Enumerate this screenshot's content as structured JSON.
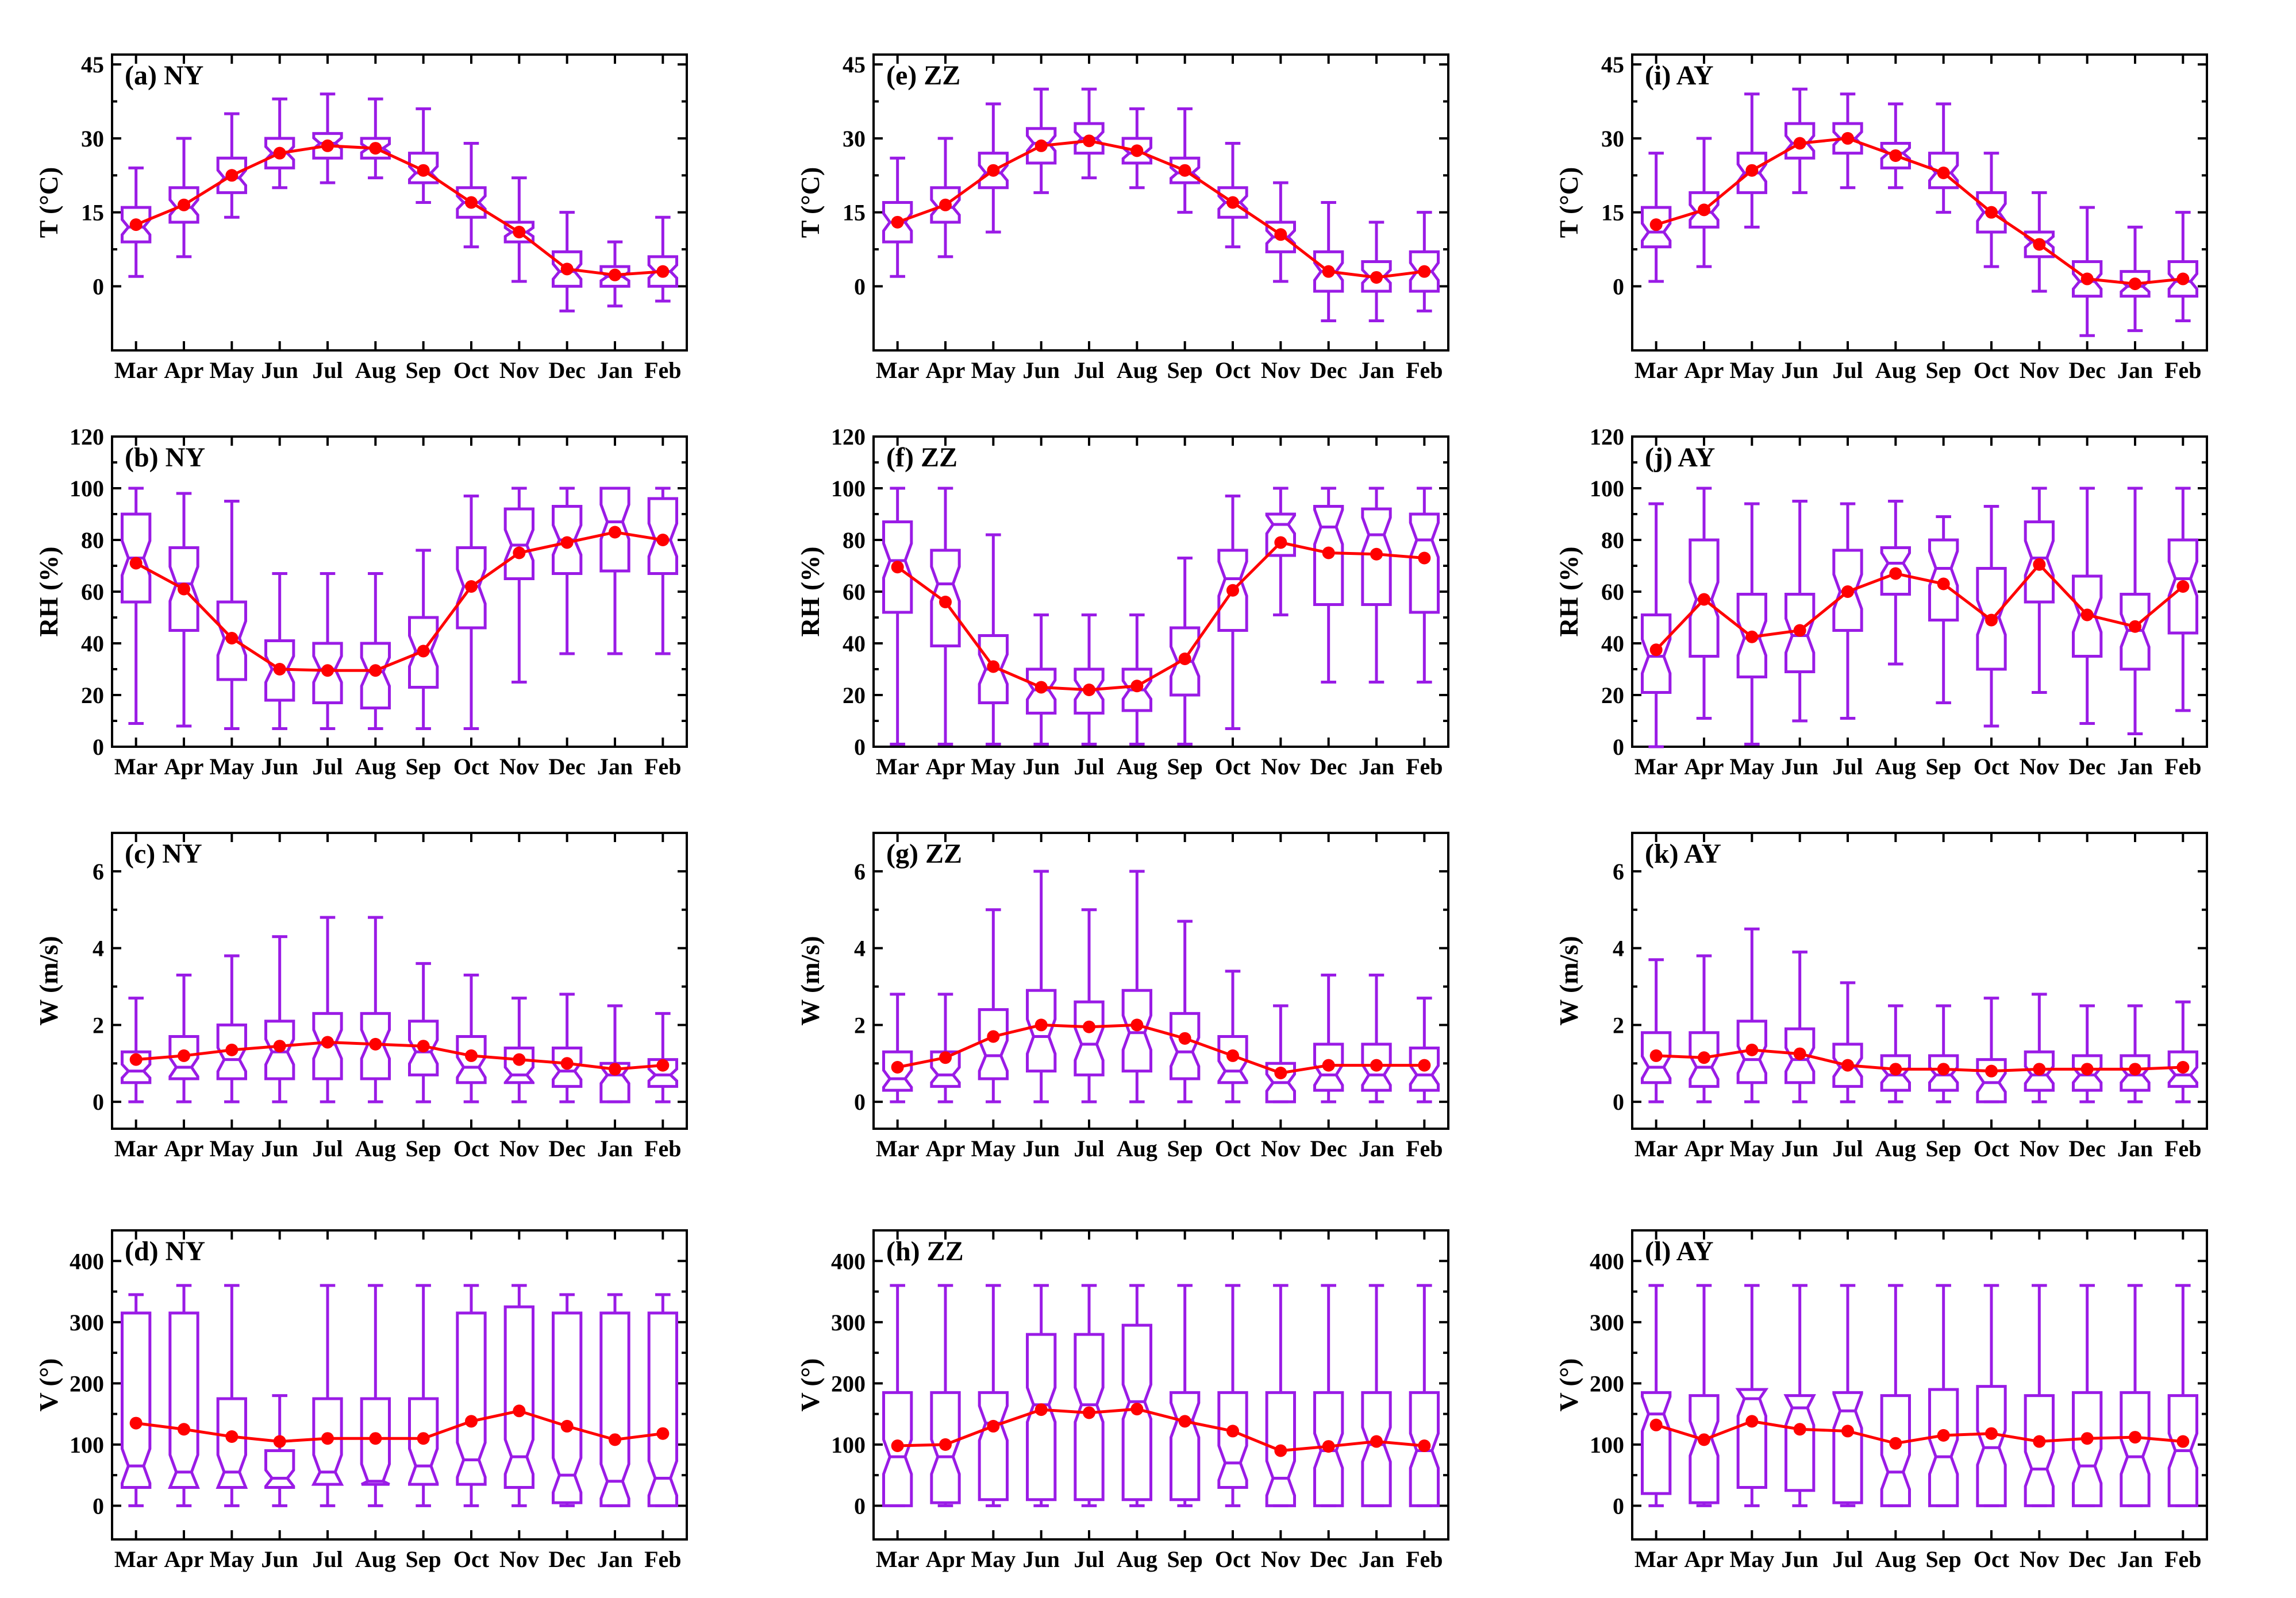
{
  "figure": {
    "box_color": "#9a1be6",
    "mean_color": "#ff0000"
  },
  "chart_data": [
    {
      "type": "box",
      "panel_label": "(a) NY",
      "ylabel": "T (°C)",
      "ylim": [
        -13,
        47
      ],
      "yticks": [
        0,
        15,
        30,
        45
      ],
      "categories": [
        "Mar",
        "Apr",
        "May",
        "Jun",
        "Jul",
        "Aug",
        "Sep",
        "Oct",
        "Nov",
        "Dec",
        "Jan",
        "Feb"
      ],
      "min": [
        2,
        6,
        14,
        20,
        21,
        22,
        17,
        8,
        1,
        -5,
        -4,
        -3
      ],
      "q1": [
        9,
        13,
        19,
        24,
        26,
        26,
        21,
        14,
        9,
        0,
        0,
        0
      ],
      "median": [
        12,
        16,
        22,
        27,
        29,
        28,
        23,
        17,
        11,
        3,
        2,
        3
      ],
      "q3": [
        16,
        20,
        26,
        30,
        31,
        30,
        27,
        20,
        13,
        7,
        4,
        6
      ],
      "max": [
        24,
        30,
        35,
        38,
        39,
        38,
        36,
        29,
        22,
        15,
        9,
        14
      ],
      "mean": [
        12.5,
        16.5,
        22.5,
        27,
        28.5,
        28,
        23.5,
        17,
        11,
        3.5,
        2.3,
        3
      ]
    },
    {
      "type": "box",
      "panel_label": "(b) NY",
      "ylabel": "RH (%)",
      "ylim": [
        0,
        120
      ],
      "yticks": [
        0,
        20,
        40,
        60,
        80,
        100,
        120
      ],
      "categories": [
        "Mar",
        "Apr",
        "May",
        "Jun",
        "Jul",
        "Aug",
        "Sep",
        "Oct",
        "Nov",
        "Dec",
        "Jan",
        "Feb"
      ],
      "min": [
        9,
        8,
        7,
        7,
        7,
        7,
        7,
        7,
        25,
        36,
        36,
        36
      ],
      "q1": [
        56,
        45,
        26,
        18,
        17,
        15,
        23,
        46,
        65,
        67,
        68,
        67
      ],
      "median": [
        73,
        63,
        42,
        30,
        30,
        29,
        37,
        62,
        78,
        80,
        87,
        80
      ],
      "q3": [
        90,
        77,
        56,
        41,
        40,
        40,
        50,
        77,
        92,
        93,
        100,
        96
      ],
      "max": [
        100,
        98,
        95,
        67,
        67,
        67,
        76,
        97,
        100,
        100,
        100,
        100
      ],
      "mean": [
        71,
        61,
        42,
        30,
        29.5,
        29.5,
        37,
        62,
        75,
        79,
        83,
        80
      ]
    },
    {
      "type": "box",
      "panel_label": "(c) NY",
      "ylabel": "W (m/s)",
      "ylim": [
        -0.7,
        7
      ],
      "yticks": [
        0,
        2,
        4,
        6
      ],
      "categories": [
        "Mar",
        "Apr",
        "May",
        "Jun",
        "Jul",
        "Aug",
        "Sep",
        "Oct",
        "Nov",
        "Dec",
        "Jan",
        "Feb"
      ],
      "min": [
        0,
        0,
        0,
        0,
        0,
        0,
        0,
        0,
        0,
        0,
        0,
        0
      ],
      "q1": [
        0.5,
        0.6,
        0.6,
        0.6,
        0.6,
        0.6,
        0.7,
        0.5,
        0.5,
        0.4,
        0,
        0.4
      ],
      "median": [
        0.8,
        0.9,
        1.1,
        1.3,
        1.5,
        1.5,
        1.3,
        0.9,
        0.7,
        0.8,
        0.7,
        0.7
      ],
      "q3": [
        1.3,
        1.7,
        2,
        2.1,
        2.3,
        2.3,
        2.1,
        1.7,
        1.4,
        1.4,
        1,
        1.1
      ],
      "max": [
        2.7,
        3.3,
        3.8,
        4.3,
        4.8,
        4.8,
        3.6,
        3.3,
        2.7,
        2.8,
        2.5,
        2.3
      ],
      "mean": [
        1.1,
        1.2,
        1.35,
        1.45,
        1.55,
        1.5,
        1.45,
        1.2,
        1.1,
        1,
        0.85,
        0.95
      ]
    },
    {
      "type": "box",
      "panel_label": "(d) NY",
      "ylabel": "V (°)",
      "ylim": [
        -55,
        450
      ],
      "yticks": [
        0,
        100,
        200,
        300,
        400
      ],
      "categories": [
        "Mar",
        "Apr",
        "May",
        "Jun",
        "Jul",
        "Aug",
        "Sep",
        "Oct",
        "Nov",
        "Dec",
        "Jan",
        "Feb"
      ],
      "min": [
        0,
        0,
        0,
        0,
        0,
        0,
        0,
        0,
        0,
        0,
        0,
        0
      ],
      "q1": [
        30,
        30,
        30,
        30,
        35,
        35,
        35,
        35,
        30,
        5,
        0,
        0
      ],
      "median": [
        65,
        55,
        55,
        45,
        55,
        40,
        65,
        75,
        80,
        50,
        40,
        45
      ],
      "q3": [
        315,
        315,
        175,
        90,
        175,
        175,
        175,
        315,
        325,
        315,
        315,
        315
      ],
      "max": [
        345,
        360,
        360,
        180,
        360,
        360,
        360,
        360,
        360,
        345,
        345,
        345
      ],
      "mean": [
        135,
        125,
        113,
        105,
        110,
        110,
        110,
        138,
        155,
        130,
        108,
        118
      ]
    },
    {
      "type": "box",
      "panel_label": "(e) ZZ",
      "ylabel": "T (°C)",
      "ylim": [
        -13,
        47
      ],
      "yticks": [
        0,
        15,
        30,
        45
      ],
      "categories": [
        "Mar",
        "Apr",
        "May",
        "Jun",
        "Jul",
        "Aug",
        "Sep",
        "Oct",
        "Nov",
        "Dec",
        "Jan",
        "Feb"
      ],
      "min": [
        2,
        6,
        11,
        19,
        22,
        20,
        15,
        8,
        1,
        -7,
        -7,
        -5
      ],
      "q1": [
        9,
        13,
        20,
        25,
        27,
        25,
        21,
        14,
        7,
        -1,
        -1,
        -1
      ],
      "median": [
        13,
        16,
        23,
        29,
        30,
        27,
        23,
        17,
        10,
        3,
        2,
        3
      ],
      "q3": [
        17,
        20,
        27,
        32,
        33,
        30,
        26,
        20,
        13,
        7,
        5,
        7
      ],
      "max": [
        26,
        30,
        37,
        40,
        40,
        36,
        36,
        29,
        21,
        17,
        13,
        15
      ],
      "mean": [
        13,
        16.5,
        23.5,
        28.5,
        29.5,
        27.5,
        23.5,
        17,
        10.5,
        3,
        1.8,
        3
      ]
    },
    {
      "type": "box",
      "panel_label": "(f) ZZ",
      "ylabel": "RH (%)",
      "ylim": [
        0,
        120
      ],
      "yticks": [
        0,
        20,
        40,
        60,
        80,
        100,
        120
      ],
      "categories": [
        "Mar",
        "Apr",
        "May",
        "Jun",
        "Jul",
        "Aug",
        "Sep",
        "Oct",
        "Nov",
        "Dec",
        "Jan",
        "Feb"
      ],
      "min": [
        1,
        1,
        1,
        1,
        1,
        1,
        1,
        7,
        51,
        25,
        25,
        25
      ],
      "q1": [
        52,
        39,
        17,
        13,
        13,
        14,
        20,
        45,
        74,
        55,
        55,
        52
      ],
      "median": [
        72,
        63,
        30,
        22,
        22,
        22,
        33,
        65,
        86,
        85,
        82,
        80
      ],
      "q3": [
        87,
        76,
        43,
        30,
        30,
        30,
        46,
        76,
        90,
        93,
        92,
        90
      ],
      "max": [
        100,
        100,
        82,
        51,
        51,
        51,
        73,
        97,
        100,
        100,
        100,
        100
      ],
      "mean": [
        69.5,
        56,
        31,
        23,
        22,
        23.5,
        34,
        60.5,
        79,
        75,
        74.5,
        73
      ]
    },
    {
      "type": "box",
      "panel_label": "(g) ZZ",
      "ylabel": "W (m/s)",
      "ylim": [
        -0.7,
        7
      ],
      "yticks": [
        0,
        2,
        4,
        6
      ],
      "categories": [
        "Mar",
        "Apr",
        "May",
        "Jun",
        "Jul",
        "Aug",
        "Sep",
        "Oct",
        "Nov",
        "Dec",
        "Jan",
        "Feb"
      ],
      "min": [
        0,
        0,
        0,
        0,
        0,
        0,
        0,
        0,
        0,
        0,
        0,
        0
      ],
      "q1": [
        0.3,
        0.4,
        0.6,
        0.8,
        0.7,
        0.8,
        0.6,
        0.5,
        0,
        0.3,
        0.3,
        0.3
      ],
      "median": [
        0.6,
        0.7,
        1.2,
        1.7,
        1.5,
        1.8,
        1.3,
        0.8,
        0.5,
        0.7,
        0.7,
        0.7
      ],
      "q3": [
        1.3,
        1.3,
        2.4,
        2.9,
        2.6,
        2.9,
        2.3,
        1.7,
        1,
        1.5,
        1.5,
        1.4
      ],
      "max": [
        2.8,
        2.8,
        5,
        6,
        5,
        6,
        4.7,
        3.4,
        2.5,
        3.3,
        3.3,
        2.7
      ],
      "mean": [
        0.9,
        1.15,
        1.7,
        2,
        1.95,
        2,
        1.65,
        1.2,
        0.75,
        0.95,
        0.95,
        0.95
      ]
    },
    {
      "type": "box",
      "panel_label": "(h) ZZ",
      "ylabel": "V (°)",
      "ylim": [
        -55,
        450
      ],
      "yticks": [
        0,
        100,
        200,
        300,
        400
      ],
      "categories": [
        "Mar",
        "Apr",
        "May",
        "Jun",
        "Jul",
        "Aug",
        "Sep",
        "Oct",
        "Nov",
        "Dec",
        "Jan",
        "Feb"
      ],
      "min": [
        0,
        0,
        0,
        0,
        0,
        0,
        0,
        0,
        0,
        0,
        0,
        0
      ],
      "q1": [
        0,
        5,
        10,
        10,
        10,
        10,
        10,
        30,
        0,
        0,
        0,
        0
      ],
      "median": [
        80,
        80,
        135,
        165,
        165,
        170,
        140,
        70,
        45,
        90,
        100,
        90
      ],
      "q3": [
        185,
        185,
        185,
        280,
        280,
        295,
        185,
        185,
        185,
        185,
        185,
        185
      ],
      "max": [
        360,
        360,
        360,
        360,
        360,
        360,
        360,
        360,
        360,
        360,
        360,
        360
      ],
      "mean": [
        98,
        100,
        130,
        157,
        152,
        158,
        138,
        122,
        90,
        97,
        105,
        98
      ]
    },
    {
      "type": "box",
      "panel_label": "(i) AY",
      "ylabel": "T (°C)",
      "ylim": [
        -13,
        47
      ],
      "yticks": [
        0,
        15,
        30,
        45
      ],
      "categories": [
        "Mar",
        "Apr",
        "May",
        "Jun",
        "Jul",
        "Aug",
        "Sep",
        "Oct",
        "Nov",
        "Dec",
        "Jan",
        "Feb"
      ],
      "min": [
        1,
        4,
        12,
        19,
        20,
        20,
        15,
        4,
        -1,
        -10,
        -9,
        -7
      ],
      "q1": [
        8,
        12,
        19,
        26,
        27,
        24,
        20,
        11,
        6,
        -2,
        -2,
        -2
      ],
      "median": [
        11,
        15,
        23,
        29,
        30,
        27,
        23,
        15,
        9,
        1,
        0,
        1
      ],
      "q3": [
        16,
        19,
        27,
        33,
        33,
        29,
        27,
        19,
        11,
        5,
        3,
        5
      ],
      "max": [
        27,
        30,
        39,
        40,
        39,
        37,
        37,
        27,
        19,
        16,
        12,
        15
      ],
      "mean": [
        12.5,
        15.5,
        23.5,
        29,
        30,
        26.5,
        23,
        15,
        8.5,
        1.5,
        0.5,
        1.5
      ]
    },
    {
      "type": "box",
      "panel_label": "(j) AY",
      "ylabel": "RH (%)",
      "ylim": [
        0,
        120
      ],
      "yticks": [
        0,
        20,
        40,
        60,
        80,
        100,
        120
      ],
      "categories": [
        "Mar",
        "Apr",
        "May",
        "Jun",
        "Jul",
        "Aug",
        "Sep",
        "Oct",
        "Nov",
        "Dec",
        "Jan",
        "Feb"
      ],
      "min": [
        0,
        11,
        1,
        10,
        11,
        32,
        17,
        8,
        21,
        9,
        5,
        14
      ],
      "q1": [
        21,
        35,
        27,
        29,
        45,
        59,
        49,
        30,
        56,
        35,
        30,
        44
      ],
      "median": [
        35,
        57,
        42,
        43,
        60,
        71,
        69,
        50,
        73,
        51,
        45,
        65
      ],
      "q3": [
        51,
        80,
        59,
        59,
        76,
        77,
        80,
        69,
        87,
        66,
        59,
        80
      ],
      "max": [
        94,
        100,
        94,
        95,
        94,
        95,
        89,
        93,
        100,
        100,
        100,
        100
      ],
      "mean": [
        37.5,
        57,
        42.5,
        45,
        60,
        67,
        63,
        49,
        70.5,
        51,
        46.5,
        62
      ]
    },
    {
      "type": "box",
      "panel_label": "(k) AY",
      "ylabel": "W (m/s)",
      "ylim": [
        -0.7,
        7
      ],
      "yticks": [
        0,
        2,
        4,
        6
      ],
      "categories": [
        "Mar",
        "Apr",
        "May",
        "Jun",
        "Jul",
        "Aug",
        "Sep",
        "Oct",
        "Nov",
        "Dec",
        "Jan",
        "Feb"
      ],
      "min": [
        0,
        0,
        0,
        0,
        0,
        0,
        0,
        0,
        0,
        0,
        0,
        0
      ],
      "q1": [
        0.5,
        0.4,
        0.5,
        0.5,
        0.4,
        0.3,
        0.3,
        0,
        0.3,
        0.3,
        0.3,
        0.4
      ],
      "median": [
        0.9,
        0.9,
        1.1,
        1.1,
        0.9,
        0.7,
        0.7,
        0.5,
        0.7,
        0.7,
        0.7,
        0.7
      ],
      "q3": [
        1.8,
        1.8,
        2.1,
        1.9,
        1.5,
        1.2,
        1.2,
        1.1,
        1.3,
        1.2,
        1.2,
        1.3
      ],
      "max": [
        3.7,
        3.8,
        4.5,
        3.9,
        3.1,
        2.5,
        2.5,
        2.7,
        2.8,
        2.5,
        2.5,
        2.6
      ],
      "mean": [
        1.2,
        1.15,
        1.35,
        1.25,
        0.95,
        0.85,
        0.85,
        0.8,
        0.85,
        0.85,
        0.85,
        0.9
      ]
    },
    {
      "type": "box",
      "panel_label": "(l) AY",
      "ylabel": "V (°)",
      "ylim": [
        -55,
        450
      ],
      "yticks": [
        0,
        100,
        200,
        300,
        400
      ],
      "categories": [
        "Mar",
        "Apr",
        "May",
        "Jun",
        "Jul",
        "Aug",
        "Sep",
        "Oct",
        "Nov",
        "Dec",
        "Jan",
        "Feb"
      ],
      "min": [
        0,
        0,
        0,
        0,
        0,
        0,
        0,
        0,
        0,
        0,
        0,
        0
      ],
      "q1": [
        20,
        5,
        30,
        25,
        5,
        0,
        0,
        0,
        0,
        0,
        0,
        0
      ],
      "median": [
        150,
        110,
        175,
        160,
        155,
        55,
        80,
        95,
        60,
        65,
        80,
        90
      ],
      "q3": [
        185,
        180,
        190,
        180,
        185,
        180,
        190,
        195,
        180,
        185,
        185,
        180
      ],
      "max": [
        360,
        360,
        360,
        360,
        360,
        360,
        360,
        360,
        360,
        360,
        360,
        360
      ],
      "mean": [
        132,
        108,
        138,
        125,
        122,
        102,
        115,
        118,
        105,
        110,
        112,
        105
      ]
    }
  ]
}
